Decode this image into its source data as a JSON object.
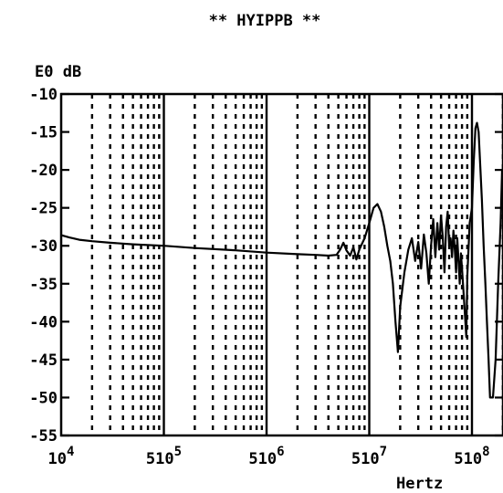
{
  "chart_data": {
    "type": "line",
    "title": "** HYIPPB **",
    "ylabel": "E0 dB",
    "xlabel": "Hertz",
    "x_scale": "log",
    "xlim": [
      10000,
      200000000
    ],
    "ylim": [
      -55,
      -10
    ],
    "yticks": [
      -10,
      -15,
      -20,
      -25,
      -30,
      -35,
      -40,
      -45,
      -50,
      -55
    ],
    "xtick_labels": [
      {
        "value": 10000,
        "base": "10",
        "exp": "4"
      },
      {
        "value": 100000,
        "base": "510",
        "exp": "5"
      },
      {
        "value": 1000000,
        "base": "510",
        "exp": "6"
      },
      {
        "value": 10000000,
        "base": "510",
        "exp": "7"
      },
      {
        "value": 100000000,
        "base": "510",
        "exp": "8"
      }
    ],
    "grid": "vertical-log-dotted",
    "series": [
      {
        "x": [
          10000,
          12000,
          15000,
          20000,
          30000,
          50000,
          100000,
          200000,
          500000,
          1000000,
          2000000,
          3000000,
          4000000,
          4800000,
          5200000,
          5600000,
          6000000,
          6500000,
          7000000,
          7500000,
          8000000,
          9000000,
          10000000,
          11000000,
          12000000,
          13000000,
          14000000,
          15000000,
          16000000,
          17000000,
          18000000,
          19000000,
          20000000,
          22000000,
          24000000,
          26000000,
          28000000,
          30000000,
          32000000,
          34000000,
          36000000,
          38000000,
          40000000,
          42000000,
          44000000,
          46000000,
          48000000,
          50000000,
          52000000,
          54000000,
          56000000,
          58000000,
          60000000,
          62000000,
          64000000,
          66000000,
          68000000,
          70000000,
          72000000,
          74000000,
          76000000,
          78000000,
          80000000,
          84000000,
          88000000,
          90000000,
          95000000,
          100000000,
          104000000,
          108000000,
          112000000,
          116000000,
          120000000,
          125000000,
          130000000,
          135000000,
          140000000,
          145000000,
          150000000,
          160000000,
          170000000,
          180000000,
          190000000,
          200000000
        ],
        "y": [
          -28.6,
          -28.9,
          -29.2,
          -29.4,
          -29.6,
          -29.8,
          -30.0,
          -30.3,
          -30.6,
          -30.9,
          -31.1,
          -31.2,
          -31.3,
          -31.2,
          -30.5,
          -29.6,
          -30.6,
          -31.3,
          -30.2,
          -31.8,
          -30.5,
          -29.0,
          -27.0,
          -25.0,
          -24.5,
          -25.5,
          -27.5,
          -30.0,
          -32.0,
          -35.0,
          -40.0,
          -44.0,
          -38.0,
          -33.5,
          -30.5,
          -29.0,
          -32.0,
          -29.5,
          -33.0,
          -28.5,
          -31.0,
          -35.0,
          -30.0,
          -26.5,
          -31.5,
          -27.0,
          -30.5,
          -26.0,
          -29.0,
          -33.5,
          -27.5,
          -25.5,
          -30.0,
          -29.0,
          -31.5,
          -28.0,
          -30.5,
          -33.5,
          -29.0,
          -32.0,
          -35.0,
          -31.0,
          -33.0,
          -37.5,
          -42.0,
          -34.0,
          -27.0,
          -25.0,
          -19.0,
          -14.5,
          -13.8,
          -15.0,
          -19.0,
          -24.0,
          -30.0,
          -35.0,
          -40.0,
          -45.0,
          -50.0,
          -50.0,
          -45.0,
          -35.0,
          -27.0,
          -20.0
        ]
      }
    ]
  }
}
